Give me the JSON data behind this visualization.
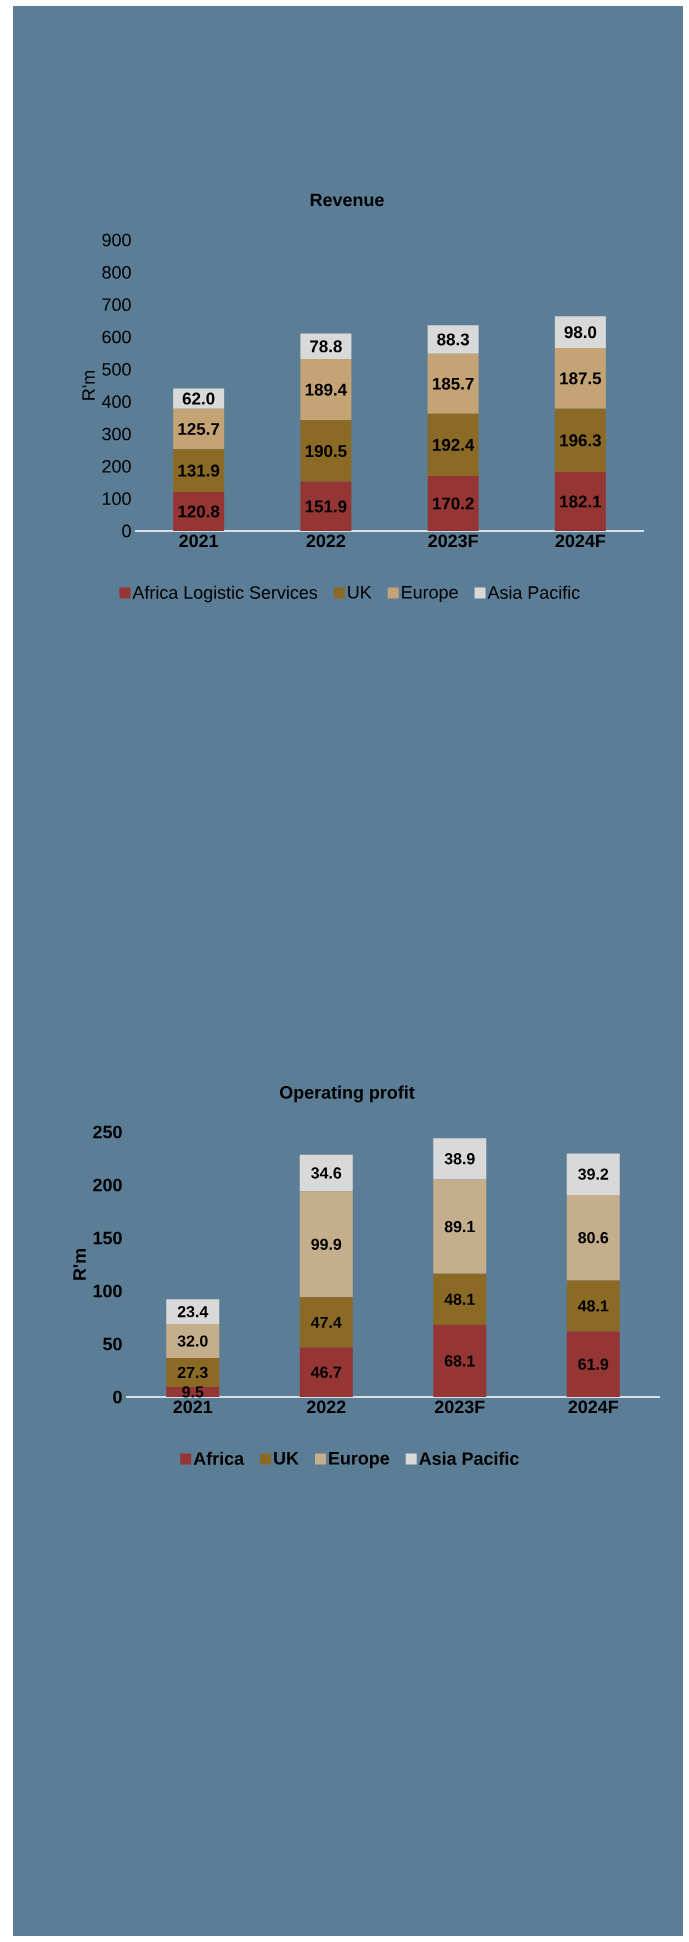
{
  "chart_data": [
    {
      "type": "bar",
      "title": "Revenue",
      "ylabel": "R'm",
      "categories": [
        "2021",
        "2022",
        "2023F",
        "2024F"
      ],
      "stacked": true,
      "legend": "bottom",
      "ylim": [
        0,
        900
      ],
      "yticks": [
        0,
        100,
        200,
        300,
        400,
        500,
        600,
        700,
        800,
        900
      ],
      "series": [
        {
          "name": "Africa Logistic Services",
          "color": "#963634",
          "values": [
            120.8,
            151.9,
            170.2,
            182.1
          ],
          "value_labels": [
            "120.8",
            "151.9",
            "170.2",
            "182.1"
          ]
        },
        {
          "name": "UK",
          "color": "#8b6a25",
          "values": [
            131.9,
            190.5,
            192.4,
            196.3
          ],
          "value_labels": [
            "131.9",
            "190.5",
            "192.4",
            "196.3"
          ]
        },
        {
          "name": "Europe",
          "color": "#c4a475",
          "values": [
            125.7,
            189.4,
            185.7,
            187.5
          ],
          "value_labels": [
            "125.7",
            "189.4",
            "185.7",
            "187.5"
          ]
        },
        {
          "name": "Asia Pacific",
          "color": "#d9d9d9",
          "values": [
            62.0,
            78.8,
            88.3,
            98.0
          ],
          "value_labels": [
            "62.0",
            "78.8",
            "88.3",
            "98.0"
          ]
        }
      ]
    },
    {
      "type": "bar",
      "title": "Operating profit",
      "ylabel": "R'm",
      "categories": [
        "2021",
        "2022",
        "2023F",
        "2024F"
      ],
      "stacked": true,
      "legend": "bottom",
      "ylim": [
        0,
        250
      ],
      "yticks": [
        0,
        50,
        100,
        150,
        200,
        250
      ],
      "series": [
        {
          "name": "Africa",
          "color": "#963634",
          "values": [
            9.5,
            46.7,
            68.1,
            61.9
          ],
          "value_labels": [
            "9.5",
            "46.7",
            "68.1",
            "61.9"
          ]
        },
        {
          "name": "UK",
          "color": "#8b6a25",
          "values": [
            27.3,
            47.4,
            48.1,
            48.1
          ],
          "value_labels": [
            "27.3",
            "47.4",
            "48.1",
            "48.1"
          ]
        },
        {
          "name": "Europe",
          "color": "#c5ae8c",
          "values": [
            32.0,
            99.9,
            89.1,
            80.6
          ],
          "value_labels": [
            "32.0",
            "99.9",
            "89.1",
            "80.6"
          ]
        },
        {
          "name": "Asia Pacific",
          "color": "#d9d9d9",
          "values": [
            23.4,
            34.6,
            38.9,
            39.2
          ],
          "value_labels": [
            "23.4",
            "34.6",
            "38.9",
            "39.2"
          ]
        }
      ]
    }
  ]
}
